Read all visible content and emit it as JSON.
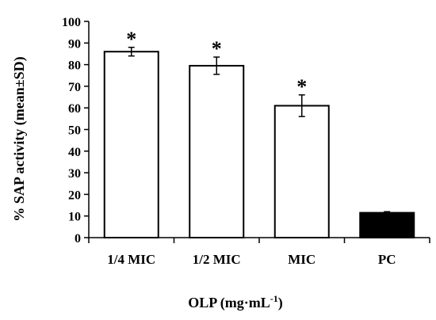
{
  "chart_data": {
    "type": "bar",
    "title": "",
    "xlabel": "OLP (mg·mL",
    "xlabel_sup": "-1",
    "xlabel_close": ")",
    "ylabel": "% SAP activity (mean±SD)",
    "ylim": [
      0,
      100
    ],
    "yticks": [
      0,
      10,
      20,
      30,
      40,
      50,
      60,
      70,
      80,
      90,
      100
    ],
    "categories": [
      "1/4 MIC",
      "1/2 MIC",
      "MIC",
      "PC"
    ],
    "values": [
      86,
      79.5,
      61,
      11.5
    ],
    "errors": [
      2,
      4,
      5,
      0.5
    ],
    "annotations": [
      "*",
      "*",
      "*",
      ""
    ],
    "bar_fills": [
      "#ffffff",
      "#ffffff",
      "#ffffff",
      "#000000"
    ],
    "grid": false,
    "legend": "none"
  }
}
